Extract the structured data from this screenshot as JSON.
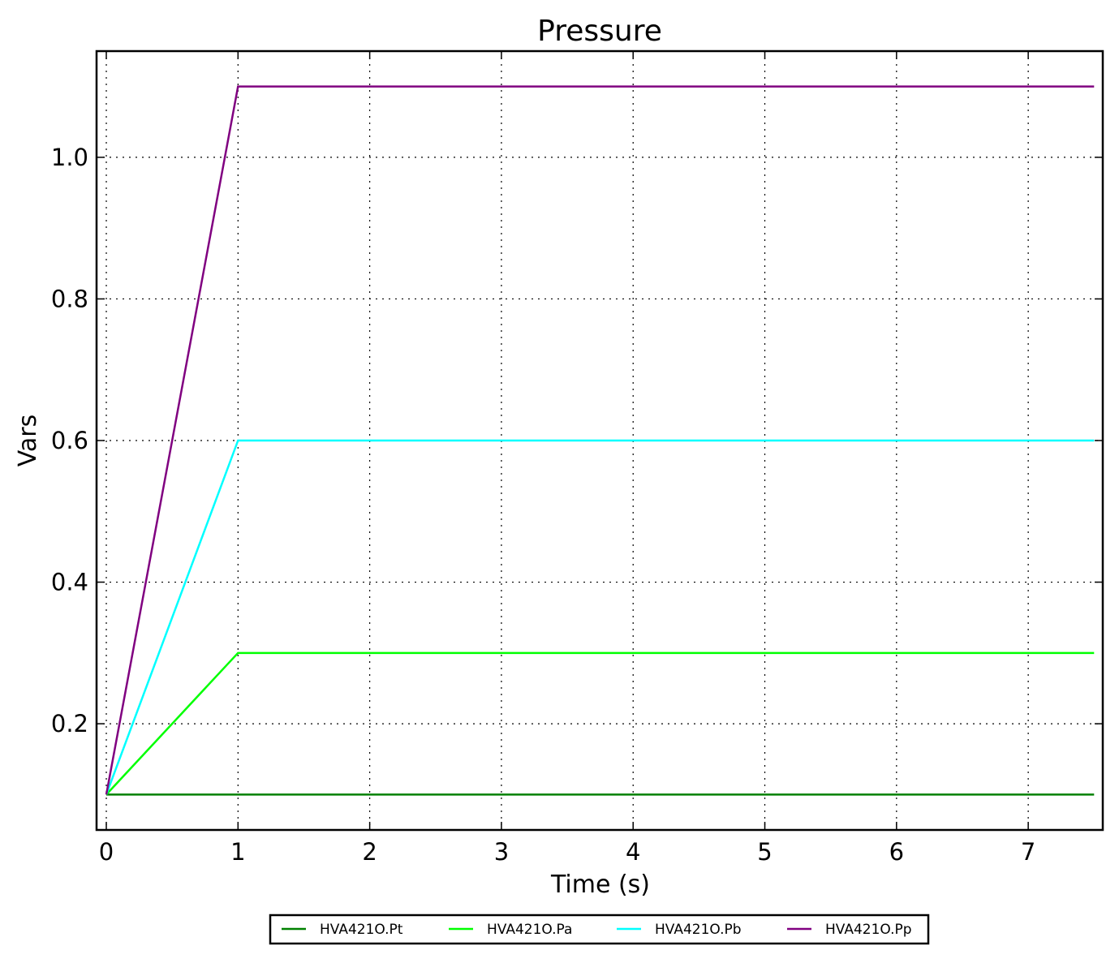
{
  "chart_data": {
    "type": "line",
    "title": "Pressure",
    "xlabel": "Time (s)",
    "ylabel": "Vars",
    "xlim": [
      -0.074,
      7.566
    ],
    "ylim": [
      0.05,
      1.15
    ],
    "xticks": [
      0,
      1,
      2,
      3,
      4,
      5,
      6,
      7
    ],
    "xtick_labels": [
      "0",
      "1",
      "2",
      "3",
      "4",
      "5",
      "6",
      "7"
    ],
    "yticks": [
      0.2,
      0.4,
      0.6,
      0.8,
      1.0
    ],
    "ytick_labels": [
      "0.2",
      "0.4",
      "0.6",
      "0.8",
      "1.0"
    ],
    "grid": true,
    "legend_position": "bottom-center",
    "series": [
      {
        "name": "HVA421O.Pt",
        "color": "#008000",
        "x": [
          0,
          1,
          7.5
        ],
        "y": [
          0.1,
          0.1,
          0.1
        ]
      },
      {
        "name": "HVA421O.Pa",
        "color": "#00ff00",
        "x": [
          0,
          1,
          7.5
        ],
        "y": [
          0.1,
          0.3,
          0.3
        ]
      },
      {
        "name": "HVA421O.Pb",
        "color": "#00ffff",
        "x": [
          0,
          1,
          7.5
        ],
        "y": [
          0.1,
          0.6,
          0.6
        ]
      },
      {
        "name": "HVA421O.Pp",
        "color": "#800080",
        "x": [
          0,
          1,
          7.5
        ],
        "y": [
          0.1,
          1.1,
          1.1
        ]
      }
    ]
  }
}
